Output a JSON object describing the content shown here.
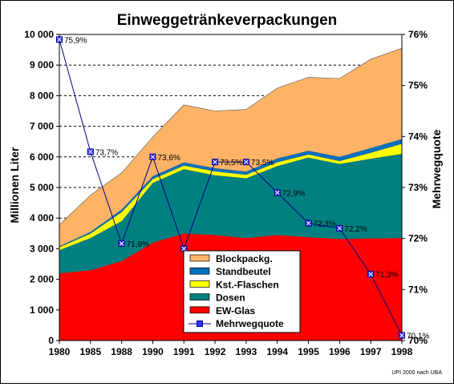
{
  "chart_data": {
    "type": "area",
    "title": "Einweggetränkeverpackungen",
    "ylabel": "Millionen Liter",
    "y2label": "Mehrwegquote",
    "categories": [
      "1980",
      "1985",
      "1988",
      "1990",
      "1991",
      "1992",
      "1993",
      "1994",
      "1995",
      "1996",
      "1997",
      "1998"
    ],
    "ylim": [
      0,
      10000
    ],
    "y2lim": [
      70,
      76
    ],
    "yticks": [
      "0",
      "1 000",
      "2 000",
      "3 000",
      "4 000",
      "5 000",
      "6 000",
      "7 000",
      "8 000",
      "9 000",
      "10 000"
    ],
    "y2ticks": [
      "70%",
      "71%",
      "72%",
      "73%",
      "74%",
      "75%",
      "76%"
    ],
    "grid": "dashed horizontal",
    "legend_position": "bottom-center",
    "stacked_series": [
      {
        "name": "EW-Glas",
        "color": "#ff0000",
        "values": [
          2200,
          2300,
          2600,
          3200,
          3500,
          3450,
          3350,
          3450,
          3380,
          3320,
          3340,
          3350
        ]
      },
      {
        "name": "Dosen",
        "color": "#008080",
        "values": [
          750,
          1050,
          1300,
          1950,
          2100,
          1950,
          1950,
          2250,
          2600,
          2450,
          2600,
          2750
        ]
      },
      {
        "name": "Kst.-Flaschen",
        "color": "#ffff00",
        "values": [
          100,
          150,
          300,
          130,
          120,
          130,
          120,
          130,
          100,
          100,
          200,
          330
        ]
      },
      {
        "name": "Standbeutel",
        "color": "#0070c0",
        "values": [
          30,
          50,
          80,
          90,
          100,
          100,
          100,
          120,
          120,
          130,
          150,
          150
        ]
      },
      {
        "name": "Blockpackg.",
        "color": "#ffb366",
        "values": [
          700,
          1200,
          1200,
          1280,
          1880,
          1870,
          2030,
          2300,
          2400,
          2560,
          2900,
          2970
        ]
      }
    ],
    "line_series": {
      "name": "Mehrwegquote",
      "color": "#00008b",
      "values": [
        75.9,
        73.7,
        71.9,
        73.6,
        71.8,
        73.5,
        73.5,
        72.9,
        72.3,
        72.2,
        71.3,
        70.1
      ],
      "labels": [
        "75,9%",
        "73,7%",
        "71,9%",
        "73,6%",
        "",
        "73,5%",
        "73,5%",
        "72,9%",
        "72,3%",
        "72,2%",
        "71,3%",
        "70,1%"
      ]
    },
    "legend_order": [
      "Blockpackg.",
      "Standbeutel",
      "Kst.-Flaschen",
      "Dosen",
      "EW-Glas",
      "Mehrwegquote"
    ],
    "source_note": "UPI 2000 nach UBA"
  }
}
